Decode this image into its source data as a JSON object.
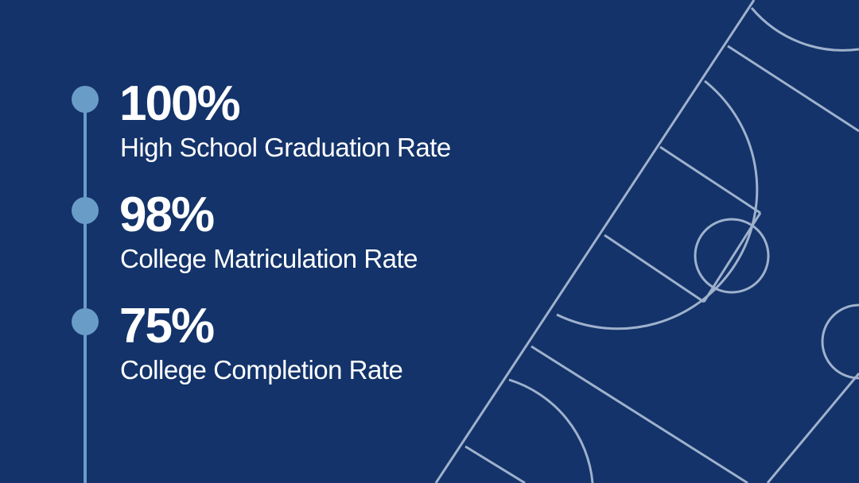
{
  "stats": [
    {
      "value": "100%",
      "label": "High School Graduation Rate"
    },
    {
      "value": "98%",
      "label": "College Matriculation Rate"
    },
    {
      "value": "75%",
      "label": "College Completion Rate"
    }
  ]
}
